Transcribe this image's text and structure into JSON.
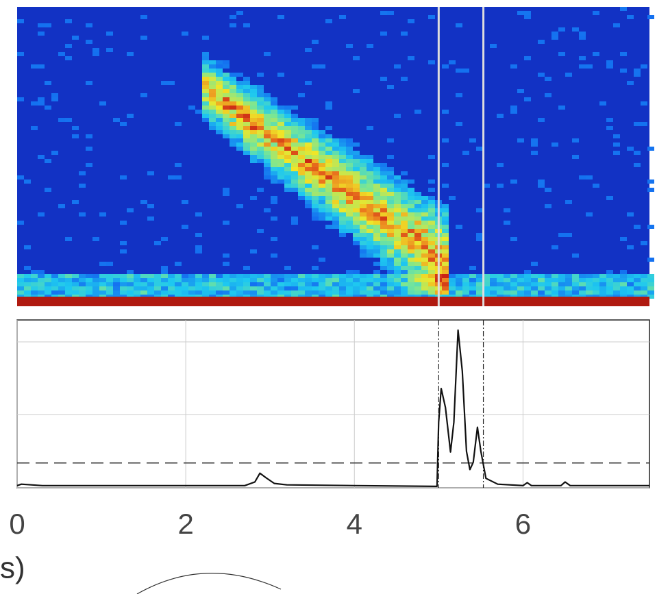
{
  "chart_data": {
    "type": "line",
    "xlabel": "s)",
    "x": [
      0,
      0.05,
      0.3,
      1,
      2,
      2.7,
      2.82,
      2.88,
      2.95,
      3.05,
      3.2,
      4,
      4.98,
      5.0,
      5.03,
      5.08,
      5.14,
      5.18,
      5.23,
      5.28,
      5.33,
      5.37,
      5.41,
      5.46,
      5.5,
      5.56,
      5.7,
      6.0,
      6.05,
      6.1,
      6.45,
      6.5,
      6.56,
      7,
      7.5
    ],
    "series": [
      {
        "color": "#111111",
        "values": [
          0.03,
          0.05,
          0.03,
          0.03,
          0.03,
          0.03,
          0.08,
          0.2,
          0.14,
          0.06,
          0.04,
          0.03,
          0.02,
          0.9,
          1.36,
          1.1,
          0.49,
          0.9,
          2.16,
          1.6,
          0.5,
          0.25,
          0.35,
          0.83,
          0.5,
          0.13,
          0.05,
          0.03,
          0.07,
          0.03,
          0.03,
          0.08,
          0.03,
          0.03,
          0.03
        ]
      }
    ],
    "xlim": [
      0,
      7.5
    ],
    "xticks": [
      0,
      2,
      4,
      6
    ],
    "ylim": [
      0,
      2.3
    ],
    "yticks": [
      0,
      1,
      2
    ],
    "threshold": 0.34,
    "markers": [
      5,
      5.53
    ],
    "grid": true
  }
}
